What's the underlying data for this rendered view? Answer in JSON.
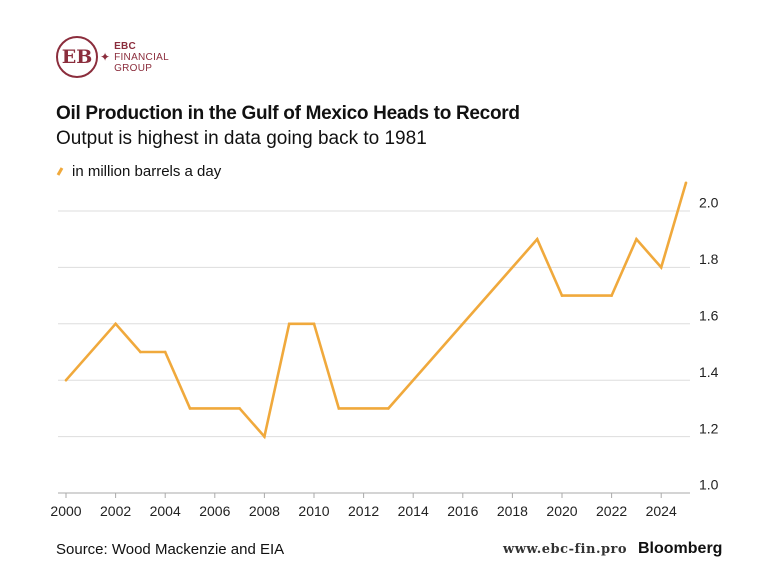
{
  "logo": {
    "monogram": "EB",
    "line1": "EBC",
    "line2": "FINANCIAL",
    "line3": "GROUP"
  },
  "chart_data": {
    "type": "line",
    "title": "Oil Production in the Gulf of Mexico Heads to Record",
    "subtitle": "Output is highest in data going back to 1981",
    "unit_label": "in million barrels a day",
    "x": [
      2000,
      2002,
      2003,
      2004,
      2005,
      2007,
      2008,
      2009,
      2010,
      2011,
      2013,
      2019,
      2020,
      2022,
      2023,
      2024,
      2025
    ],
    "series": [
      {
        "values": [
          1.4,
          1.6,
          1.5,
          1.5,
          1.3,
          1.3,
          1.2,
          1.6,
          1.6,
          1.3,
          1.3,
          1.9,
          1.7,
          1.7,
          1.9,
          1.8,
          2.1
        ]
      }
    ],
    "x_ticks": [
      "2000",
      "2002",
      "2004",
      "2006",
      "2008",
      "2010",
      "2012",
      "2014",
      "2016",
      "2018",
      "2020",
      "2022",
      "2024"
    ],
    "y_ticks": [
      "1.0",
      "1.2",
      "1.4",
      "1.6",
      "1.8",
      "2.0"
    ],
    "xlim": [
      2000,
      2025
    ],
    "ylim": [
      1.0,
      2.0
    ],
    "grid": "horizontal",
    "line_color": "#f0a93c",
    "grid_color": "#dddddd"
  },
  "footer": {
    "source": "Source: Wood Mackenzie and EIA",
    "website": "www.ebc-fin.pro",
    "brand": "Bloomberg"
  }
}
